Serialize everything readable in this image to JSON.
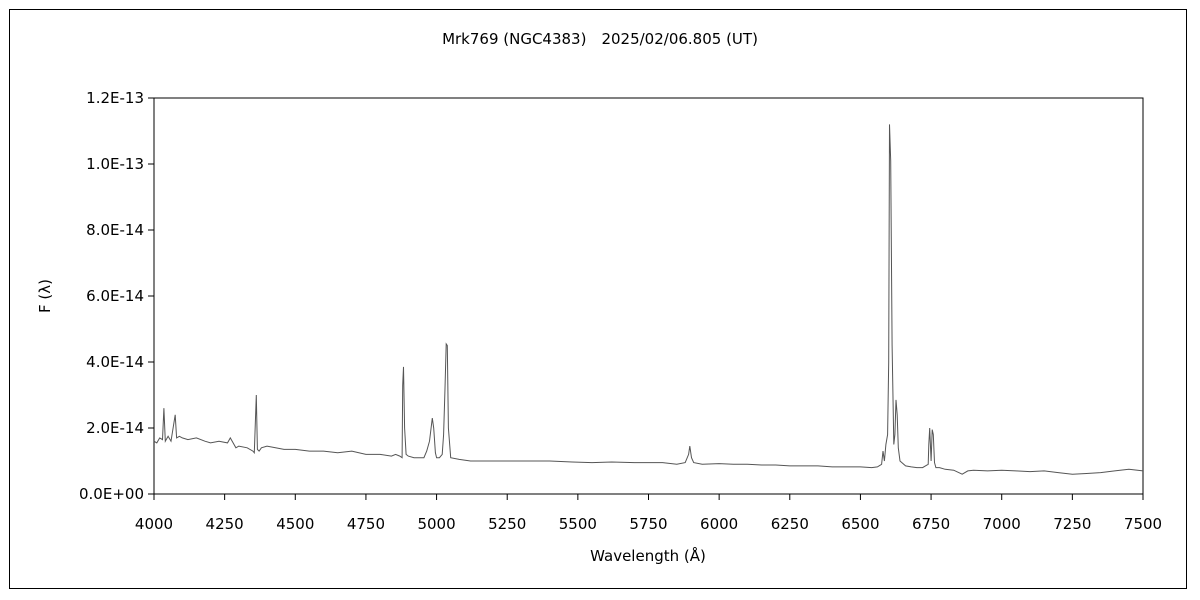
{
  "chart_data": {
    "type": "line",
    "title": "Mrk769 (NGC4383)　2025/02/06.805 (UT)",
    "xlabel": "Wavelength (Å)",
    "ylabel": "F (λ)",
    "xlim": [
      4000,
      7500
    ],
    "ylim": [
      0,
      1.2e-13
    ],
    "xticks": [
      "4000",
      "4250",
      "4500",
      "4750",
      "5000",
      "5250",
      "5500",
      "5750",
      "6000",
      "6250",
      "6500",
      "6750",
      "7000",
      "7250",
      "7500"
    ],
    "yticks": [
      "0.0E+00",
      "2.0E-14",
      "4.0E-14",
      "6.0E-14",
      "8.0E-14",
      "1.0E-13",
      "1.2E-13"
    ],
    "grid": false,
    "line_color": "#555555",
    "series": [
      {
        "x": [
          4000,
          4010,
          4020,
          4030,
          4035,
          4040,
          4050,
          4060,
          4075,
          4080,
          4090,
          4100,
          4120,
          4150,
          4180,
          4200,
          4230,
          4260,
          4270,
          4290,
          4300,
          4330,
          4350,
          4355,
          4362,
          4366,
          4372,
          4380,
          4400,
          4430,
          4460,
          4500,
          4550,
          4600,
          4650,
          4700,
          4750,
          4800,
          4840,
          4855,
          4870,
          4878,
          4880,
          4883,
          4887,
          4892,
          4900,
          4920,
          4940,
          4955,
          4965,
          4975,
          4985,
          4990,
          4996,
          5000,
          5010,
          5020,
          5025,
          5030,
          5034,
          5038,
          5042,
          5050,
          5080,
          5120,
          5180,
          5250,
          5320,
          5400,
          5480,
          5550,
          5620,
          5700,
          5760,
          5800,
          5850,
          5880,
          5892,
          5896,
          5902,
          5910,
          5940,
          6000,
          6050,
          6100,
          6150,
          6200,
          6250,
          6300,
          6350,
          6400,
          6450,
          6500,
          6540,
          6560,
          6575,
          6580,
          6585,
          6590,
          6596,
          6600,
          6603,
          6607,
          6612,
          6618,
          6622,
          6626,
          6630,
          6634,
          6640,
          6660,
          6680,
          6700,
          6720,
          6730,
          6740,
          6742,
          6745,
          6750,
          6754,
          6758,
          6762,
          6767,
          6772,
          6780,
          6800,
          6830,
          6860,
          6880,
          6900,
          6950,
          7000,
          7050,
          7100,
          7150,
          7200,
          7250,
          7300,
          7350,
          7400,
          7450,
          7500
        ],
        "y": [
          1.6e-14,
          1.55e-14,
          1.7e-14,
          1.65e-14,
          2.6e-14,
          1.6e-14,
          1.75e-14,
          1.6e-14,
          2.4e-14,
          1.7e-14,
          1.75e-14,
          1.7e-14,
          1.65e-14,
          1.7e-14,
          1.6e-14,
          1.55e-14,
          1.6e-14,
          1.55e-14,
          1.7e-14,
          1.4e-14,
          1.45e-14,
          1.4e-14,
          1.3e-14,
          1.25e-14,
          3e-14,
          1.35e-14,
          1.3e-14,
          1.4e-14,
          1.45e-14,
          1.4e-14,
          1.35e-14,
          1.35e-14,
          1.3e-14,
          1.3e-14,
          1.25e-14,
          1.3e-14,
          1.2e-14,
          1.2e-14,
          1.15e-14,
          1.2e-14,
          1.15e-14,
          1.1e-14,
          3.3e-14,
          3.85e-14,
          2e-14,
          1.2e-14,
          1.15e-14,
          1.1e-14,
          1.1e-14,
          1.1e-14,
          1.3e-14,
          1.6e-14,
          2.3e-14,
          2e-14,
          1.25e-14,
          1.1e-14,
          1.1e-14,
          1.2e-14,
          1.8e-14,
          3.2e-14,
          4.55e-14,
          4.5e-14,
          2e-14,
          1.1e-14,
          1.05e-14,
          1e-14,
          1e-14,
          1e-14,
          1e-14,
          1e-14,
          9.7e-15,
          9.5e-15,
          9.7e-15,
          9.5e-15,
          9.5e-15,
          9.5e-15,
          9e-15,
          9.5e-15,
          1.2e-14,
          1.45e-14,
          1.1e-14,
          9.5e-15,
          9e-15,
          9.2e-15,
          9e-15,
          9e-15,
          8.8e-15,
          8.8e-15,
          8.5e-15,
          8.5e-15,
          8.5e-15,
          8.2e-15,
          8.2e-15,
          8.2e-15,
          8e-15,
          8.2e-15,
          9e-15,
          1.3e-14,
          1e-14,
          1.5e-14,
          1.8e-14,
          4e-14,
          1.12e-13,
          1.01e-13,
          4.5e-14,
          1.5e-14,
          1.8e-14,
          2.85e-14,
          2.4e-14,
          1.4e-14,
          1e-14,
          8.5e-15,
          8.2e-15,
          8e-15,
          8e-15,
          8.5e-15,
          9e-15,
          1.5e-14,
          2e-14,
          1e-14,
          1.95e-14,
          1.8e-14,
          9.5e-15,
          8e-15,
          8e-15,
          8e-15,
          7.5e-15,
          7.2e-15,
          6e-15,
          7e-15,
          7.2e-15,
          7e-15,
          7.2e-15,
          7e-15,
          6.8e-15,
          7e-15,
          6.5e-15,
          6e-15,
          6.2e-15,
          6.5e-15,
          7e-15,
          7.5e-15,
          7e-15
        ]
      }
    ]
  }
}
